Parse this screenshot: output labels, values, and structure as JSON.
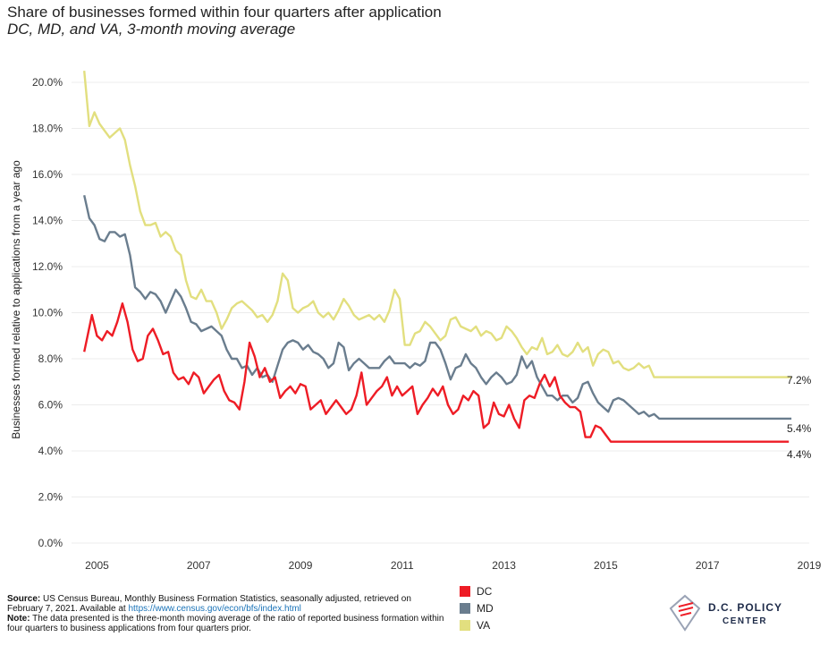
{
  "header": {
    "title": "Share of businesses formed within four quarters after application",
    "subtitle": "DC, MD, and VA, 3-month moving average"
  },
  "footer": {
    "source_label": "Source:",
    "source_text": " US Census Bureau, Monthly Business Formation Statistics, seasonally adjusted, retrieved on February 7, 2021. Available at ",
    "source_link": "https://www.census.gov/econ/bfs/index.html",
    "note_label": "Note:",
    "note_text": " The data presented is the three-month moving average of  the ratio of reported business formation within four quarters to business applications from four quarters prior."
  },
  "logo": {
    "line1": "D.C. POLICY",
    "line2": "CENTER"
  },
  "chart_data": {
    "type": "line",
    "title": "Share of businesses formed within four quarters after application",
    "subtitle": "DC, MD, and VA, 3-month moving average",
    "xlabel": "",
    "ylabel": "Businesses formed relative to applications from a year ago",
    "xlim": [
      2004.5,
      2019
    ],
    "ylim": [
      0,
      20
    ],
    "x_ticks": [
      "2005",
      "2007",
      "2009",
      "2011",
      "2013",
      "2015",
      "2017",
      "2019"
    ],
    "y_ticks": [
      "0.0%",
      "2.0%",
      "4.0%",
      "6.0%",
      "8.0%",
      "10.0%",
      "12.0%",
      "14.0%",
      "16.0%",
      "18.0%",
      "20.0%"
    ],
    "grid": true,
    "legend_position": "bottom",
    "series": [
      {
        "name": "DC",
        "color": "#ee1c25",
        "end_label": "4.4%",
        "x": [
          2004.75,
          2004.9,
          2005.0,
          2005.1,
          2005.2,
          2005.3,
          2005.4,
          2005.5,
          2005.6,
          2005.7,
          2005.8,
          2005.9,
          2006.0,
          2006.1,
          2006.2,
          2006.3,
          2006.4,
          2006.5,
          2006.6,
          2006.7,
          2006.8,
          2006.9,
          2007.0,
          2007.1,
          2007.2,
          2007.3,
          2007.4,
          2007.5,
          2007.6,
          2007.7,
          2007.8,
          2007.9,
          2008.0,
          2008.1,
          2008.2,
          2008.3,
          2008.4,
          2008.5,
          2008.6,
          2008.7,
          2008.8,
          2008.9,
          2009.0,
          2009.1,
          2009.2,
          2009.3,
          2009.4,
          2009.5,
          2009.6,
          2009.7,
          2009.8,
          2009.9,
          2010.0,
          2010.1,
          2010.2,
          2010.3,
          2010.4,
          2010.5,
          2010.6,
          2010.7,
          2010.8,
          2010.9,
          2011.0,
          2011.1,
          2011.2,
          2011.3,
          2011.4,
          2011.5,
          2011.6,
          2011.7,
          2011.8,
          2011.9,
          2012.0,
          2012.1,
          2012.2,
          2012.3,
          2012.4,
          2012.5,
          2012.6,
          2012.7,
          2012.8,
          2012.9,
          2013.0,
          2013.1,
          2013.2,
          2013.3,
          2013.4,
          2013.5,
          2013.6,
          2013.7,
          2013.8,
          2013.9,
          2014.0,
          2014.1,
          2014.2,
          2014.3,
          2014.4,
          2014.5,
          2014.6,
          2014.7,
          2014.8,
          2014.9,
          2015.0,
          2015.1,
          2015.2,
          2015.3,
          2015.4,
          2015.5,
          2015.6,
          2015.7,
          2015.8,
          2015.9,
          2016.0,
          2016.1,
          2016.2,
          2016.3,
          2016.4,
          2016.5,
          2016.6,
          2016.7,
          2016.8,
          2016.9,
          2017.0,
          2017.1,
          2017.2,
          2017.3,
          2017.4,
          2017.5,
          2017.6,
          2017.7,
          2017.8,
          2017.9,
          2018.0,
          2018.1,
          2018.2,
          2018.3,
          2018.4,
          2018.5,
          2018.6
        ],
        "values": [
          8.3,
          9.9,
          9.0,
          8.8,
          9.2,
          9.0,
          9.6,
          10.4,
          9.6,
          8.4,
          7.9,
          8.0,
          9.0,
          9.3,
          8.8,
          8.2,
          8.3,
          7.4,
          7.1,
          7.2,
          6.9,
          7.4,
          7.2,
          6.5,
          6.8,
          7.1,
          7.3,
          6.6,
          6.2,
          6.1,
          5.8,
          7.0,
          8.7,
          8.1,
          7.2,
          7.6,
          7.0,
          7.2,
          6.3,
          6.6,
          6.8,
          6.5,
          6.9,
          6.8,
          5.8,
          6.0,
          6.2,
          5.6,
          5.9,
          6.2,
          5.9,
          5.6,
          5.8,
          6.4,
          7.4,
          6.0,
          6.3,
          6.6,
          6.8,
          7.2,
          6.4,
          6.8,
          6.4,
          6.6,
          6.8,
          5.6,
          6.0,
          6.3,
          6.7,
          6.4,
          6.8,
          6.0,
          5.6,
          5.8,
          6.4,
          6.2,
          6.6,
          6.4,
          5.0,
          5.2,
          6.1,
          5.6,
          5.5,
          6.0,
          5.4,
          5.0,
          6.2,
          6.4,
          6.3,
          6.9,
          7.3,
          6.8,
          7.2,
          6.4,
          6.1,
          5.9,
          5.9,
          5.7,
          4.6,
          4.6,
          5.1,
          5.0,
          4.7,
          4.4,
          4.4,
          4.4,
          4.4,
          4.4,
          4.4,
          4.4,
          4.4,
          4.4,
          4.4,
          4.4,
          4.4,
          4.4,
          4.4,
          4.4,
          4.4,
          4.4,
          4.4,
          4.4,
          4.4,
          4.4,
          4.4,
          4.4,
          4.4,
          4.4,
          4.4,
          4.4,
          4.4,
          4.4,
          4.4,
          4.4,
          4.4,
          4.4,
          4.4,
          4.4,
          4.4
        ]
      },
      {
        "name": "MD",
        "color": "#6a7d8e",
        "end_label": "5.4%",
        "x": [
          2004.75,
          2004.85,
          2004.95,
          2005.05,
          2005.15,
          2005.25,
          2005.35,
          2005.45,
          2005.55,
          2005.65,
          2005.75,
          2005.85,
          2005.95,
          2006.05,
          2006.15,
          2006.25,
          2006.35,
          2006.45,
          2006.55,
          2006.65,
          2006.75,
          2006.85,
          2006.95,
          2007.05,
          2007.15,
          2007.25,
          2007.35,
          2007.45,
          2007.55,
          2007.65,
          2007.75,
          2007.85,
          2007.95,
          2008.05,
          2008.15,
          2008.25,
          2008.35,
          2008.45,
          2008.55,
          2008.65,
          2008.75,
          2008.85,
          2008.95,
          2009.05,
          2009.15,
          2009.25,
          2009.35,
          2009.45,
          2009.55,
          2009.65,
          2009.75,
          2009.85,
          2009.95,
          2010.05,
          2010.15,
          2010.25,
          2010.35,
          2010.45,
          2010.55,
          2010.65,
          2010.75,
          2010.85,
          2010.95,
          2011.05,
          2011.15,
          2011.25,
          2011.35,
          2011.45,
          2011.55,
          2011.65,
          2011.75,
          2011.85,
          2011.95,
          2012.05,
          2012.15,
          2012.25,
          2012.35,
          2012.45,
          2012.55,
          2012.65,
          2012.75,
          2012.85,
          2012.95,
          2013.05,
          2013.15,
          2013.25,
          2013.35,
          2013.45,
          2013.55,
          2013.65,
          2013.75,
          2013.85,
          2013.95,
          2014.05,
          2014.15,
          2014.25,
          2014.35,
          2014.45,
          2014.55,
          2014.65,
          2014.75,
          2014.85,
          2014.95,
          2015.05,
          2015.15,
          2015.25,
          2015.35,
          2015.45,
          2015.55,
          2015.65,
          2015.75,
          2015.85,
          2015.95,
          2016.05,
          2016.15,
          2016.25,
          2016.35,
          2016.45,
          2016.55,
          2016.65,
          2016.75,
          2016.85,
          2016.95,
          2017.05,
          2017.15,
          2017.25,
          2017.35,
          2017.45,
          2017.55,
          2017.65,
          2017.75,
          2017.85,
          2017.95,
          2018.05,
          2018.15,
          2018.25,
          2018.35,
          2018.45,
          2018.55,
          2018.65
        ],
        "values": [
          15.1,
          14.1,
          13.8,
          13.2,
          13.1,
          13.5,
          13.5,
          13.3,
          13.4,
          12.5,
          11.1,
          10.9,
          10.6,
          10.9,
          10.8,
          10.5,
          10.0,
          10.5,
          11.0,
          10.7,
          10.2,
          9.6,
          9.5,
          9.2,
          9.3,
          9.4,
          9.2,
          9.0,
          8.4,
          8.0,
          8.0,
          7.6,
          7.7,
          7.3,
          7.6,
          7.2,
          7.3,
          7.0,
          7.7,
          8.4,
          8.7,
          8.8,
          8.7,
          8.4,
          8.6,
          8.3,
          8.2,
          8.0,
          7.6,
          7.8,
          8.7,
          8.5,
          7.5,
          7.8,
          8.0,
          7.8,
          7.6,
          7.6,
          7.6,
          7.9,
          8.1,
          7.8,
          7.8,
          7.8,
          7.6,
          7.8,
          7.7,
          7.9,
          8.7,
          8.7,
          8.4,
          7.8,
          7.1,
          7.6,
          7.7,
          8.2,
          7.8,
          7.6,
          7.2,
          6.9,
          7.2,
          7.4,
          7.2,
          6.9,
          7.0,
          7.3,
          8.1,
          7.6,
          7.9,
          7.2,
          6.8,
          6.4,
          6.4,
          6.2,
          6.4,
          6.4,
          6.1,
          6.3,
          6.9,
          7.0,
          6.5,
          6.1,
          5.9,
          5.7,
          6.2,
          6.3,
          6.2,
          6.0,
          5.8,
          5.6,
          5.7,
          5.5,
          5.6,
          5.4,
          5.4,
          5.4,
          5.4,
          5.4,
          5.4,
          5.4,
          5.4,
          5.4,
          5.4,
          5.4,
          5.4,
          5.4,
          5.4,
          5.4,
          5.4,
          5.4,
          5.4,
          5.4,
          5.4,
          5.4,
          5.4,
          5.4,
          5.4,
          5.4,
          5.4,
          5.4
        ]
      },
      {
        "name": "VA",
        "color": "#e2df7f",
        "end_label": "7.2%",
        "x": [
          2004.75,
          2004.85,
          2004.95,
          2005.05,
          2005.15,
          2005.25,
          2005.35,
          2005.45,
          2005.55,
          2005.65,
          2005.75,
          2005.85,
          2005.95,
          2006.05,
          2006.15,
          2006.25,
          2006.35,
          2006.45,
          2006.55,
          2006.65,
          2006.75,
          2006.85,
          2006.95,
          2007.05,
          2007.15,
          2007.25,
          2007.35,
          2007.45,
          2007.55,
          2007.65,
          2007.75,
          2007.85,
          2007.95,
          2008.05,
          2008.15,
          2008.25,
          2008.35,
          2008.45,
          2008.55,
          2008.65,
          2008.75,
          2008.85,
          2008.95,
          2009.05,
          2009.15,
          2009.25,
          2009.35,
          2009.45,
          2009.55,
          2009.65,
          2009.75,
          2009.85,
          2009.95,
          2010.05,
          2010.15,
          2010.25,
          2010.35,
          2010.45,
          2010.55,
          2010.65,
          2010.75,
          2010.85,
          2010.95,
          2011.05,
          2011.15,
          2011.25,
          2011.35,
          2011.45,
          2011.55,
          2011.65,
          2011.75,
          2011.85,
          2011.95,
          2012.05,
          2012.15,
          2012.25,
          2012.35,
          2012.45,
          2012.55,
          2012.65,
          2012.75,
          2012.85,
          2012.95,
          2013.05,
          2013.15,
          2013.25,
          2013.35,
          2013.45,
          2013.55,
          2013.65,
          2013.75,
          2013.85,
          2013.95,
          2014.05,
          2014.15,
          2014.25,
          2014.35,
          2014.45,
          2014.55,
          2014.65,
          2014.75,
          2014.85,
          2014.95,
          2015.05,
          2015.15,
          2015.25,
          2015.35,
          2015.45,
          2015.55,
          2015.65,
          2015.75,
          2015.85,
          2015.95,
          2016.05,
          2016.15,
          2016.25,
          2016.35,
          2016.45,
          2016.55,
          2016.65,
          2016.75,
          2016.85,
          2016.95,
          2017.05,
          2017.15,
          2017.25,
          2017.35,
          2017.45,
          2017.55,
          2017.65,
          2017.75,
          2017.85,
          2017.95,
          2018.05,
          2018.15,
          2018.25,
          2018.35,
          2018.45,
          2018.55,
          2018.65
        ],
        "values": [
          20.5,
          18.1,
          18.7,
          18.2,
          17.9,
          17.6,
          17.8,
          18.0,
          17.5,
          16.4,
          15.5,
          14.4,
          13.8,
          13.8,
          13.9,
          13.3,
          13.5,
          13.3,
          12.7,
          12.5,
          11.4,
          10.7,
          10.6,
          11.0,
          10.5,
          10.5,
          10.0,
          9.3,
          9.7,
          10.2,
          10.4,
          10.5,
          10.3,
          10.1,
          9.8,
          9.9,
          9.6,
          9.9,
          10.5,
          11.7,
          11.4,
          10.2,
          10.0,
          10.2,
          10.3,
          10.5,
          10.0,
          9.8,
          10.0,
          9.7,
          10.1,
          10.6,
          10.3,
          9.9,
          9.7,
          9.8,
          9.9,
          9.7,
          9.9,
          9.6,
          10.1,
          11.0,
          10.6,
          8.6,
          8.6,
          9.1,
          9.2,
          9.6,
          9.4,
          9.1,
          8.8,
          9.0,
          9.7,
          9.8,
          9.4,
          9.3,
          9.2,
          9.4,
          9.0,
          9.2,
          9.1,
          8.8,
          8.9,
          9.4,
          9.2,
          8.9,
          8.5,
          8.2,
          8.5,
          8.4,
          8.9,
          8.2,
          8.3,
          8.6,
          8.2,
          8.1,
          8.3,
          8.7,
          8.3,
          8.5,
          7.7,
          8.2,
          8.4,
          8.3,
          7.8,
          7.9,
          7.6,
          7.5,
          7.6,
          7.8,
          7.6,
          7.7,
          7.2,
          7.2,
          7.2,
          7.2,
          7.2,
          7.2,
          7.2,
          7.2,
          7.2,
          7.2,
          7.2,
          7.2,
          7.2,
          7.2,
          7.2,
          7.2,
          7.2,
          7.2,
          7.2,
          7.2,
          7.2,
          7.2,
          7.2,
          7.2,
          7.2,
          7.2,
          7.2,
          7.2
        ]
      }
    ]
  }
}
